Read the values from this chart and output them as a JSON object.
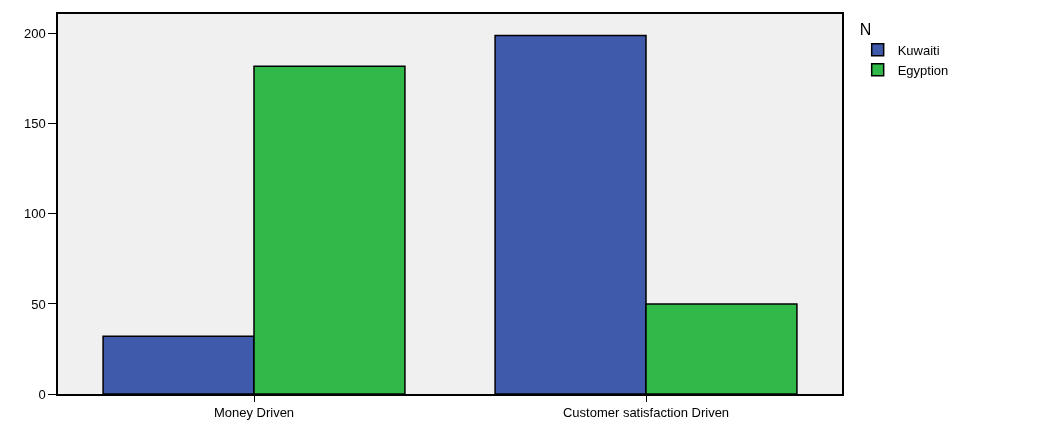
{
  "chart_data": {
    "type": "bar",
    "categories": [
      "Money Driven",
      "Customer satisfaction Driven"
    ],
    "series": [
      {
        "name": "Kuwaiti",
        "color": "#3f59ab",
        "values": [
          32,
          199
        ]
      },
      {
        "name": "Egyption",
        "color": "#30b849",
        "values": [
          182,
          50
        ]
      }
    ],
    "legend_title": "N",
    "legend": "top right",
    "ylim": [
      0,
      211
    ],
    "yticks": [
      0,
      50,
      100,
      150,
      200
    ],
    "grid": false
  }
}
